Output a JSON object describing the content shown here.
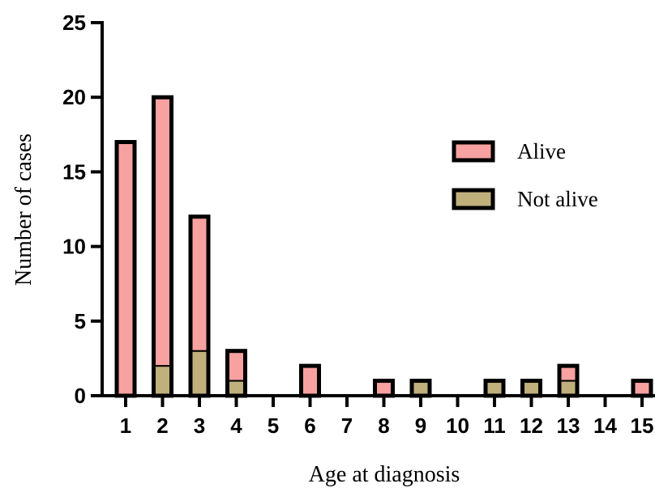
{
  "chart_data": {
    "type": "bar",
    "stacked": true,
    "categories": [
      "1",
      "2",
      "3",
      "4",
      "5",
      "6",
      "7",
      "8",
      "9",
      "10",
      "11",
      "12",
      "13",
      "14",
      "15"
    ],
    "series": [
      {
        "name": "Not alive",
        "color": "#bfb07c",
        "values": [
          0,
          2,
          3,
          1,
          0,
          0,
          0,
          0,
          1,
          0,
          1,
          1,
          1,
          0,
          0
        ]
      },
      {
        "name": "Alive",
        "color": "#f7a1a1",
        "values": [
          17,
          18,
          9,
          2,
          0,
          2,
          0,
          1,
          0,
          0,
          0,
          0,
          1,
          0,
          1
        ]
      }
    ],
    "xlabel": "Age at diagnosis",
    "ylabel": "Number of cases",
    "ylim": [
      0,
      25
    ],
    "yticks": [
      "0",
      "5",
      "10",
      "15",
      "20",
      "25"
    ],
    "grid": false,
    "legend": {
      "position": "right",
      "entries": [
        "Alive",
        "Not alive"
      ]
    },
    "bar_edge_color": "#000000"
  }
}
